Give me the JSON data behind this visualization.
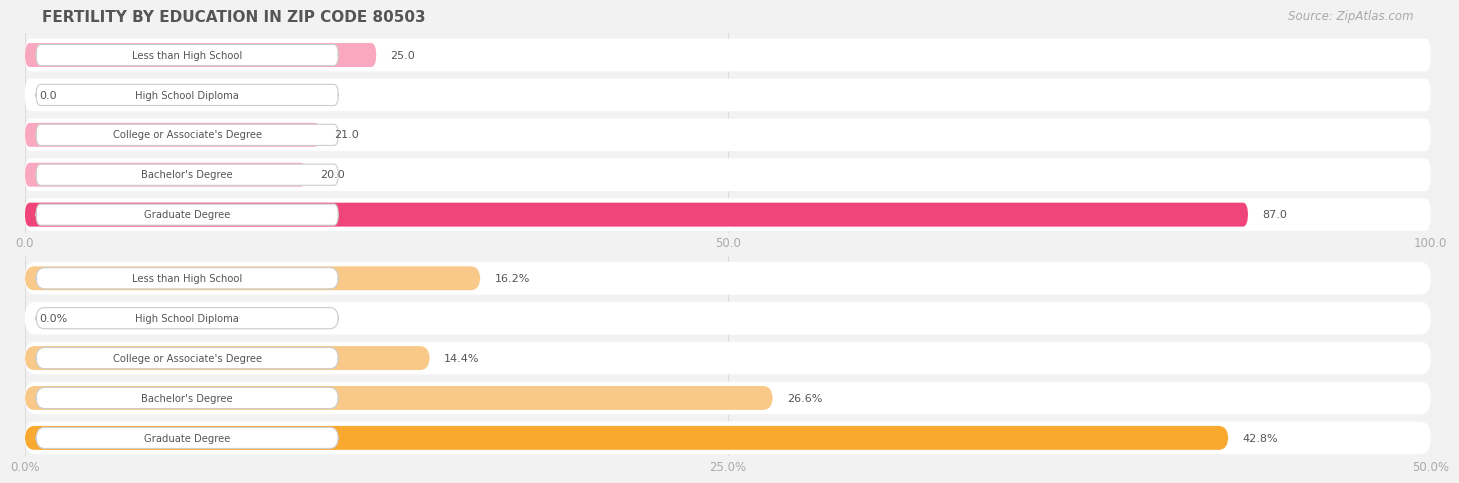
{
  "title": "FERTILITY BY EDUCATION IN ZIP CODE 80503",
  "source_text": "Source: ZipAtlas.com",
  "chart1": {
    "categories": [
      "Less than High School",
      "High School Diploma",
      "College or Associate's Degree",
      "Bachelor's Degree",
      "Graduate Degree"
    ],
    "values": [
      25.0,
      0.0,
      21.0,
      20.0,
      87.0
    ],
    "xlim": [
      0,
      100
    ],
    "xticks": [
      0.0,
      50.0,
      100.0
    ],
    "xtick_labels": [
      "0.0",
      "50.0",
      "100.0"
    ],
    "bar_color_normal": "#f9a8c0",
    "bar_color_highlight": "#f0457a",
    "highlight_index": 4,
    "value_labels": [
      "25.0",
      "0.0",
      "21.0",
      "20.0",
      "87.0"
    ]
  },
  "chart2": {
    "categories": [
      "Less than High School",
      "High School Diploma",
      "College or Associate's Degree",
      "Bachelor's Degree",
      "Graduate Degree"
    ],
    "values": [
      16.2,
      0.0,
      14.4,
      26.6,
      42.8
    ],
    "xlim": [
      0,
      50
    ],
    "xticks": [
      0.0,
      25.0,
      50.0
    ],
    "xtick_labels": [
      "0.0%",
      "25.0%",
      "50.0%"
    ],
    "bar_color_normal": "#f9c98a",
    "bar_color_highlight": "#f9a830",
    "highlight_index": 4,
    "value_labels": [
      "16.2%",
      "0.0%",
      "14.4%",
      "26.6%",
      "42.8%"
    ]
  },
  "bg_color": "#f2f2f2",
  "bar_bg_color": "#ffffff",
  "label_box_color": "#ffffff",
  "label_text_color": "#555555",
  "title_color": "#555555",
  "source_color": "#aaaaaa",
  "tick_color": "#aaaaaa",
  "grid_color": "#dddddd"
}
